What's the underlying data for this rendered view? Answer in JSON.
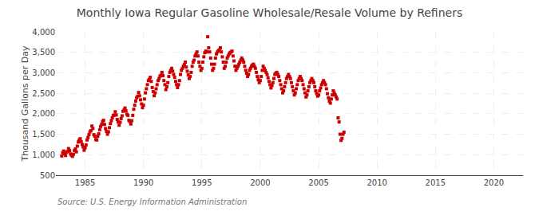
{
  "chart_data": {
    "type": "scatter",
    "title": "Monthly Iowa Regular Gasoline Wholesale/Resale Volume by Refiners",
    "ylabel": "Thousand Gallons per Day",
    "annotations": [
      "Source: U.S. Energy Information Administration"
    ],
    "color": "#cc0000",
    "marker": "square",
    "grid": true,
    "xlim": [
      1982.5,
      2022.5
    ],
    "ylim": [
      500,
      4000
    ],
    "xticks": [
      1985,
      1990,
      1995,
      2000,
      2005,
      2010,
      2015,
      2020
    ],
    "yticks": [
      500,
      {
        "value": 1000,
        "label": "1,000"
      },
      {
        "value": 1500,
        "label": "1,500"
      },
      {
        "value": 2000,
        "label": "2,000"
      },
      {
        "value": 2500,
        "label": "2,500"
      },
      {
        "value": 3000,
        "label": "3,000"
      },
      {
        "value": 3500,
        "label": "3,500"
      },
      {
        "value": 4000,
        "label": "4,000"
      }
    ],
    "x": [
      1983.0,
      1983.083,
      1983.167,
      1983.25,
      1983.333,
      1983.417,
      1983.5,
      1983.583,
      1983.667,
      1983.75,
      1983.833,
      1983.917,
      1984.0,
      1984.083,
      1984.167,
      1984.25,
      1984.333,
      1984.417,
      1984.5,
      1984.583,
      1984.667,
      1984.75,
      1984.833,
      1984.917,
      1985.0,
      1985.083,
      1985.167,
      1985.25,
      1985.333,
      1985.417,
      1985.5,
      1985.583,
      1985.667,
      1985.75,
      1985.833,
      1985.917,
      1986.0,
      1986.083,
      1986.167,
      1986.25,
      1986.333,
      1986.417,
      1986.5,
      1986.583,
      1986.667,
      1986.75,
      1986.833,
      1986.917,
      1987.0,
      1987.083,
      1987.167,
      1987.25,
      1987.333,
      1987.417,
      1987.5,
      1987.583,
      1987.667,
      1987.75,
      1987.833,
      1987.917,
      1988.0,
      1988.083,
      1988.167,
      1988.25,
      1988.333,
      1988.417,
      1988.5,
      1988.583,
      1988.667,
      1988.75,
      1988.833,
      1988.917,
      1989.0,
      1989.083,
      1989.167,
      1989.25,
      1989.333,
      1989.417,
      1989.5,
      1989.583,
      1989.667,
      1989.75,
      1989.833,
      1989.917,
      1990.0,
      1990.083,
      1990.167,
      1990.25,
      1990.333,
      1990.417,
      1990.5,
      1990.583,
      1990.667,
      1990.75,
      1990.833,
      1990.917,
      1991.0,
      1991.083,
      1991.167,
      1991.25,
      1991.333,
      1991.417,
      1991.5,
      1991.583,
      1991.667,
      1991.75,
      1991.833,
      1991.917,
      1992.0,
      1992.083,
      1992.167,
      1992.25,
      1992.333,
      1992.417,
      1992.5,
      1992.583,
      1992.667,
      1992.75,
      1992.833,
      1992.917,
      1993.0,
      1993.083,
      1993.167,
      1993.25,
      1993.333,
      1993.417,
      1993.5,
      1993.583,
      1993.667,
      1993.75,
      1993.833,
      1993.917,
      1994.0,
      1994.083,
      1994.167,
      1994.25,
      1994.333,
      1994.417,
      1994.5,
      1994.583,
      1994.667,
      1994.75,
      1994.833,
      1994.917,
      1995.0,
      1995.083,
      1995.167,
      1995.25,
      1995.333,
      1995.417,
      1995.5,
      1995.583,
      1995.667,
      1995.75,
      1995.833,
      1995.917,
      1996.0,
      1996.083,
      1996.167,
      1996.25,
      1996.333,
      1996.417,
      1996.5,
      1996.583,
      1996.667,
      1996.75,
      1996.833,
      1996.917,
      1997.0,
      1997.083,
      1997.167,
      1997.25,
      1997.333,
      1997.417,
      1997.5,
      1997.583,
      1997.667,
      1997.75,
      1997.833,
      1997.917,
      1998.0,
      1998.083,
      1998.167,
      1998.25,
      1998.333,
      1998.417,
      1998.5,
      1998.583,
      1998.667,
      1998.75,
      1998.833,
      1998.917,
      1999.0,
      1999.083,
      1999.167,
      1999.25,
      1999.333,
      1999.417,
      1999.5,
      1999.583,
      1999.667,
      1999.75,
      1999.833,
      1999.917,
      2000.0,
      2000.083,
      2000.167,
      2000.25,
      2000.333,
      2000.417,
      2000.5,
      2000.583,
      2000.667,
      2000.75,
      2000.833,
      2000.917,
      2001.0,
      2001.083,
      2001.167,
      2001.25,
      2001.333,
      2001.417,
      2001.5,
      2001.583,
      2001.667,
      2001.75,
      2001.833,
      2001.917,
      2002.0,
      2002.083,
      2002.167,
      2002.25,
      2002.333,
      2002.417,
      2002.5,
      2002.583,
      2002.667,
      2002.75,
      2002.833,
      2002.917,
      2003.0,
      2003.083,
      2003.167,
      2003.25,
      2003.333,
      2003.417,
      2003.5,
      2003.583,
      2003.667,
      2003.75,
      2003.833,
      2003.917,
      2004.0,
      2004.083,
      2004.167,
      2004.25,
      2004.333,
      2004.417,
      2004.5,
      2004.583,
      2004.667,
      2004.75,
      2004.833,
      2004.917,
      2005.0,
      2005.083,
      2005.167,
      2005.25,
      2005.333,
      2005.417,
      2005.5,
      2005.583,
      2005.667,
      2005.75,
      2005.833,
      2005.917,
      2006.0,
      2006.083,
      2006.167,
      2006.25,
      2006.333,
      2006.417,
      2006.5,
      2006.583,
      2006.667,
      2006.75,
      2006.833,
      2006.917,
      2007.0,
      2007.083,
      2007.167
    ],
    "values": [
      970,
      1050,
      1090,
      1020,
      980,
      1060,
      1080,
      1150,
      1100,
      1020,
      990,
      960,
      1010,
      1100,
      1140,
      1070,
      1210,
      1310,
      1360,
      1390,
      1320,
      1250,
      1190,
      1110,
      1170,
      1240,
      1360,
      1420,
      1490,
      1560,
      1590,
      1700,
      1640,
      1490,
      1450,
      1370,
      1360,
      1450,
      1510,
      1610,
      1690,
      1740,
      1810,
      1840,
      1740,
      1640,
      1570,
      1500,
      1560,
      1660,
      1760,
      1830,
      1900,
      1960,
      1970,
      2050,
      1970,
      1860,
      1800,
      1720,
      1790,
      1880,
      1950,
      2060,
      2090,
      2140,
      2070,
      1990,
      1960,
      1840,
      1810,
      1750,
      1830,
      1960,
      2110,
      2210,
      2310,
      2390,
      2430,
      2520,
      2440,
      2340,
      2240,
      2150,
      2210,
      2360,
      2510,
      2610,
      2710,
      2810,
      2840,
      2890,
      2790,
      2640,
      2540,
      2440,
      2510,
      2610,
      2710,
      2810,
      2860,
      2920,
      2940,
      3010,
      2930,
      2810,
      2710,
      2590,
      2660,
      2760,
      2910,
      3010,
      3060,
      3110,
      3040,
      2960,
      2890,
      2790,
      2710,
      2640,
      2710,
      2810,
      2960,
      3060,
      3110,
      3160,
      3200,
      3260,
      3140,
      3040,
      2950,
      2860,
      2910,
      3010,
      3160,
      3260,
      3310,
      3410,
      3460,
      3510,
      3410,
      3260,
      3160,
      3060,
      3110,
      3260,
      3390,
      3490,
      3530,
      3510,
      3880,
      3610,
      3510,
      3360,
      3210,
      3060,
      3110,
      3210,
      3360,
      3460,
      3510,
      3540,
      3560,
      3610,
      3510,
      3390,
      3260,
      3110,
      3160,
      3260,
      3360,
      3410,
      3460,
      3490,
      3510,
      3530,
      3410,
      3290,
      3160,
      3060,
      3110,
      3160,
      3210,
      3260,
      3310,
      3360,
      3310,
      3260,
      3160,
      3060,
      2990,
      2910,
      2960,
      3060,
      3110,
      3160,
      3190,
      3210,
      3160,
      3110,
      3010,
      2910,
      2830,
      2760,
      2810,
      2910,
      3060,
      3160,
      3110,
      3060,
      3010,
      2960,
      2880,
      2790,
      2710,
      2630,
      2690,
      2760,
      2860,
      2960,
      2990,
      3010,
      2960,
      2910,
      2810,
      2710,
      2610,
      2510,
      2560,
      2660,
      2760,
      2860,
      2910,
      2960,
      2910,
      2860,
      2760,
      2660,
      2560,
      2460,
      2510,
      2610,
      2710,
      2810,
      2860,
      2910,
      2860,
      2810,
      2710,
      2610,
      2510,
      2410,
      2460,
      2560,
      2660,
      2760,
      2810,
      2860,
      2810,
      2760,
      2660,
      2560,
      2490,
      2430,
      2460,
      2560,
      2630,
      2710,
      2760,
      2810,
      2760,
      2710,
      2610,
      2490,
      2390,
      2310,
      2260,
      2360,
      2460,
      2560,
      2510,
      2460,
      2410,
      2360,
      1900,
      1800,
      1500,
      1350,
      1400,
      1500,
      1550
    ]
  }
}
